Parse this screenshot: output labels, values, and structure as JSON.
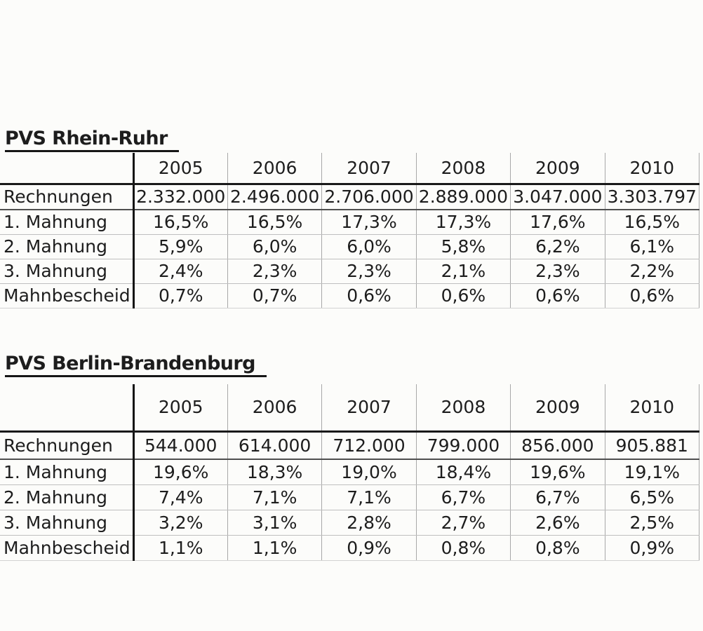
{
  "colors": {
    "paper_background": "#fcfcfa",
    "text": "#1d1d1d",
    "line_dark": "#191919",
    "line_light": "#a8a8a8"
  },
  "tables": [
    {
      "title": "PVS Rhein-Ruhr",
      "years": [
        "2005",
        "2006",
        "2007",
        "2008",
        "2009",
        "2010"
      ],
      "rows": [
        {
          "label": "Rechnungen",
          "values": [
            "2.332.000",
            "2.496.000",
            "2.706.000",
            "2.889.000",
            "3.047.000",
            "3.303.797"
          ]
        },
        {
          "label": "1. Mahnung",
          "values": [
            "16,5%",
            "16,5%",
            "17,3%",
            "17,3%",
            "17,6%",
            "16,5%"
          ]
        },
        {
          "label": "2. Mahnung",
          "values": [
            "5,9%",
            "6,0%",
            "6,0%",
            "5,8%",
            "6,2%",
            "6,1%"
          ]
        },
        {
          "label": "3. Mahnung",
          "values": [
            "2,4%",
            "2,3%",
            "2,3%",
            "2,1%",
            "2,3%",
            "2,2%"
          ]
        },
        {
          "label": "Mahnbescheid",
          "values": [
            "0,7%",
            "0,7%",
            "0,6%",
            "0,6%",
            "0,6%",
            "0,6%"
          ]
        }
      ]
    },
    {
      "title": "PVS Berlin-Brandenburg",
      "years": [
        "2005",
        "2006",
        "2007",
        "2008",
        "2009",
        "2010"
      ],
      "rows": [
        {
          "label": "Rechnungen",
          "values": [
            "544.000",
            "614.000",
            "712.000",
            "799.000",
            "856.000",
            "905.881"
          ]
        },
        {
          "label": "1. Mahnung",
          "values": [
            "19,6%",
            "18,3%",
            "19,0%",
            "18,4%",
            "19,6%",
            "19,1%"
          ]
        },
        {
          "label": "2. Mahnung",
          "values": [
            "7,4%",
            "7,1%",
            "7,1%",
            "6,7%",
            "6,7%",
            "6,5%"
          ]
        },
        {
          "label": "3. Mahnung",
          "values": [
            "3,2%",
            "3,1%",
            "2,8%",
            "2,7%",
            "2,6%",
            "2,5%"
          ]
        },
        {
          "label": "Mahnbescheid",
          "values": [
            "1,1%",
            "1,1%",
            "0,9%",
            "0,8%",
            "0,8%",
            "0,9%"
          ]
        }
      ]
    }
  ]
}
